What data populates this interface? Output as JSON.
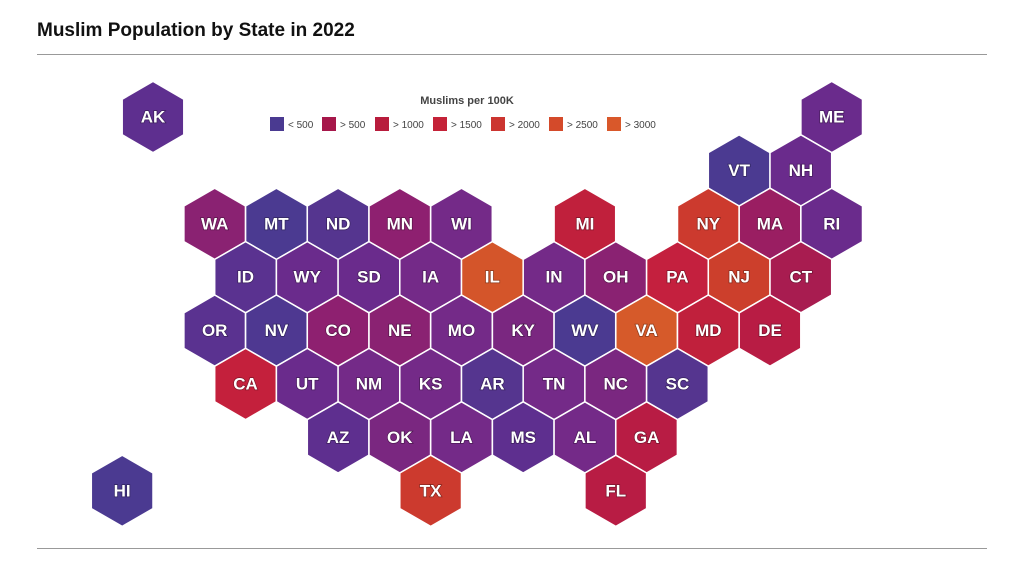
{
  "title": "Muslim Population by State in 2022",
  "chart_data": {
    "type": "hex-tile-map",
    "title": "Muslim Population by State in 2022",
    "legend": {
      "title": "Muslims per 100K",
      "placement": "top-center",
      "items": [
        {
          "label": "< 500",
          "color": "#4a3a91"
        },
        {
          "label": "> 500",
          "color": "#a6174a"
        },
        {
          "label": "> 1000",
          "color": "#b81c3c"
        },
        {
          "label": "> 1500",
          "color": "#c42238"
        },
        {
          "label": "> 2000",
          "color": "#cc3530"
        },
        {
          "label": "> 2500",
          "color": "#d44a2a"
        },
        {
          "label": "> 3000",
          "color": "#d9582a"
        }
      ]
    },
    "states": [
      {
        "abbr": "AK",
        "row": 0,
        "col": 0,
        "color": "#5e2f8f"
      },
      {
        "abbr": "ME",
        "row": 0,
        "col": 11,
        "color": "#6a2b8c"
      },
      {
        "abbr": "VT",
        "row": 1,
        "col": 9.5,
        "color": "#4b3a91"
      },
      {
        "abbr": "NH",
        "row": 1,
        "col": 10.5,
        "color": "#6a2b8c"
      },
      {
        "abbr": "WA",
        "row": 2,
        "col": 1,
        "color": "#8a2272"
      },
      {
        "abbr": "MT",
        "row": 2,
        "col": 2,
        "color": "#4b3a91"
      },
      {
        "abbr": "ND",
        "row": 2,
        "col": 3,
        "color": "#55358f"
      },
      {
        "abbr": "MN",
        "row": 2,
        "col": 4,
        "color": "#8e2070"
      },
      {
        "abbr": "WI",
        "row": 2,
        "col": 5,
        "color": "#742a88"
      },
      {
        "abbr": "MI",
        "row": 2,
        "col": 7,
        "color": "#c0203c"
      },
      {
        "abbr": "NY",
        "row": 2,
        "col": 9,
        "color": "#cc3a2e"
      },
      {
        "abbr": "MA",
        "row": 2,
        "col": 10,
        "color": "#9a1e62"
      },
      {
        "abbr": "RI",
        "row": 2,
        "col": 11,
        "color": "#6a2b8c"
      },
      {
        "abbr": "ID",
        "row": 3,
        "col": 1.5,
        "color": "#5a3290"
      },
      {
        "abbr": "WY",
        "row": 3,
        "col": 2.5,
        "color": "#6a2b8c"
      },
      {
        "abbr": "SD",
        "row": 3,
        "col": 3.5,
        "color": "#6a2b8c"
      },
      {
        "abbr": "IA",
        "row": 3,
        "col": 4.5,
        "color": "#742a88"
      },
      {
        "abbr": "IL",
        "row": 3,
        "col": 5.5,
        "color": "#d4552a"
      },
      {
        "abbr": "IN",
        "row": 3,
        "col": 6.5,
        "color": "#742a88"
      },
      {
        "abbr": "OH",
        "row": 3,
        "col": 7.5,
        "color": "#8a2272"
      },
      {
        "abbr": "PA",
        "row": 3,
        "col": 8.5,
        "color": "#c4203e"
      },
      {
        "abbr": "NJ",
        "row": 3,
        "col": 9.5,
        "color": "#cc3f2c"
      },
      {
        "abbr": "CT",
        "row": 3,
        "col": 10.5,
        "color": "#a81c50"
      },
      {
        "abbr": "OR",
        "row": 4,
        "col": 1,
        "color": "#5a3290"
      },
      {
        "abbr": "NV",
        "row": 4,
        "col": 2,
        "color": "#4e3891"
      },
      {
        "abbr": "CO",
        "row": 4,
        "col": 3,
        "color": "#8e2070"
      },
      {
        "abbr": "NE",
        "row": 4,
        "col": 4,
        "color": "#8a2272"
      },
      {
        "abbr": "MO",
        "row": 4,
        "col": 5,
        "color": "#742a88"
      },
      {
        "abbr": "KY",
        "row": 4,
        "col": 6,
        "color": "#7a2780"
      },
      {
        "abbr": "WV",
        "row": 4,
        "col": 7,
        "color": "#4b3a91"
      },
      {
        "abbr": "VA",
        "row": 4,
        "col": 8,
        "color": "#d65a2a"
      },
      {
        "abbr": "MD",
        "row": 4,
        "col": 9,
        "color": "#c0203c"
      },
      {
        "abbr": "DE",
        "row": 4,
        "col": 10,
        "color": "#b81c44"
      },
      {
        "abbr": "CA",
        "row": 5,
        "col": 1.5,
        "color": "#c4203c"
      },
      {
        "abbr": "UT",
        "row": 5,
        "col": 2.5,
        "color": "#6a2b8c"
      },
      {
        "abbr": "NM",
        "row": 5,
        "col": 3.5,
        "color": "#742a88"
      },
      {
        "abbr": "KS",
        "row": 5,
        "col": 4.5,
        "color": "#742a88"
      },
      {
        "abbr": "AR",
        "row": 5,
        "col": 5.5,
        "color": "#55358f"
      },
      {
        "abbr": "TN",
        "row": 5,
        "col": 6.5,
        "color": "#742a88"
      },
      {
        "abbr": "NC",
        "row": 5,
        "col": 7.5,
        "color": "#7a2780"
      },
      {
        "abbr": "SC",
        "row": 5,
        "col": 8.5,
        "color": "#55358f"
      },
      {
        "abbr": "AZ",
        "row": 6,
        "col": 3,
        "color": "#5e2f8f"
      },
      {
        "abbr": "OK",
        "row": 6,
        "col": 4,
        "color": "#7a2780"
      },
      {
        "abbr": "LA",
        "row": 6,
        "col": 5,
        "color": "#742a88"
      },
      {
        "abbr": "MS",
        "row": 6,
        "col": 6,
        "color": "#5e2f8f"
      },
      {
        "abbr": "AL",
        "row": 6,
        "col": 7,
        "color": "#742a88"
      },
      {
        "abbr": "GA",
        "row": 6,
        "col": 8,
        "color": "#b81c44"
      },
      {
        "abbr": "HI",
        "row": 7,
        "col": -0.5,
        "color": "#4b3a91"
      },
      {
        "abbr": "TX",
        "row": 7,
        "col": 4.5,
        "color": "#cc3a2e"
      },
      {
        "abbr": "FL",
        "row": 7,
        "col": 7.5,
        "color": "#b81c44"
      }
    ]
  }
}
